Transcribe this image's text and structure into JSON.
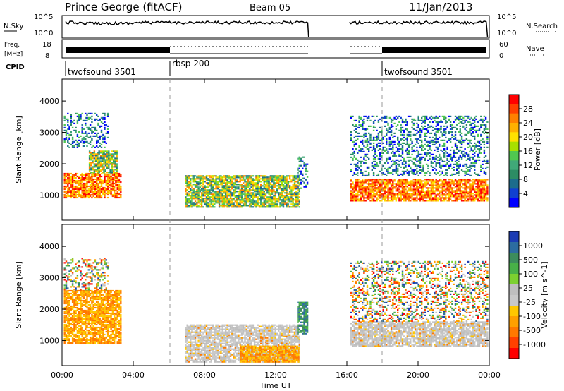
{
  "header": {
    "station": "Prince George (fitACF)",
    "beam": "Beam 05",
    "date": "11/Jan/2013"
  },
  "panels": {
    "nsky": {
      "label": "N.Sky",
      "ticks": [
        "10^5",
        "10^0"
      ],
      "right_label": "N.Search",
      "right_ticks": [
        "10^5",
        "10^0"
      ]
    },
    "freq": {
      "label_line1": "Freq.",
      "label_line2": "[MHz]",
      "ticks": [
        "18",
        "8"
      ],
      "right_label": "Nave",
      "right_ticks": [
        "60",
        "0"
      ]
    },
    "cpid": {
      "label": "CPID"
    }
  },
  "cpid_segments": [
    {
      "label": "twofsound 3501",
      "start_hour": 0
    },
    {
      "label": "rbsp 200",
      "start_hour": 6
    },
    {
      "label": "twofsound 3501",
      "start_hour": 18
    }
  ],
  "chart_data": [
    {
      "type": "heatmap",
      "name": "power",
      "ylabel": "Slant Range [km]",
      "xlabel": "Time UT",
      "x_ticks": [
        "00:00",
        "04:00",
        "08:00",
        "12:00",
        "16:00",
        "20:00",
        "00:00"
      ],
      "y_ticks": [
        1000,
        2000,
        3000,
        4000
      ],
      "xlim_hours": [
        0,
        24
      ],
      "ylim_km": [
        200,
        4700
      ],
      "colorbar": {
        "label": "Power [dB]",
        "ticks": [
          "28",
          "24",
          "20",
          "16",
          "12",
          "8",
          "4"
        ],
        "colors": [
          "#ff0000",
          "#ff4000",
          "#ff8000",
          "#ffb000",
          "#ffe000",
          "#a8e000",
          "#50c850",
          "#40a878",
          "#2c8c64",
          "#1c6c8c",
          "#1040d0",
          "#0000ff"
        ]
      },
      "regions": [
        {
          "h0": 0.1,
          "h1": 3.3,
          "r0": 900,
          "r1": 1700,
          "level": "high"
        },
        {
          "h0": 1.5,
          "h1": 3.1,
          "r0": 1700,
          "r1": 2400,
          "level": "medium"
        },
        {
          "h0": 0.1,
          "h1": 2.6,
          "r0": 2500,
          "r1": 3600,
          "level": "low"
        },
        {
          "h0": 6.9,
          "h1": 13.3,
          "r0": 600,
          "r1": 1600,
          "level": "medium"
        },
        {
          "h0": 13.2,
          "h1": 13.8,
          "r0": 1200,
          "r1": 2200,
          "level": "low"
        },
        {
          "h0": 16.2,
          "h1": 23.9,
          "r0": 800,
          "r1": 1500,
          "level": "high"
        },
        {
          "h0": 16.2,
          "h1": 23.9,
          "r0": 1600,
          "r1": 3500,
          "level": "low"
        }
      ]
    },
    {
      "type": "heatmap",
      "name": "velocity",
      "ylabel": "Slant Range [km]",
      "xlabel": "Time UT",
      "x_ticks": [
        "00:00",
        "04:00",
        "08:00",
        "12:00",
        "16:00",
        "20:00",
        "00:00"
      ],
      "y_ticks": [
        1000,
        2000,
        3000,
        4000
      ],
      "xlim_hours": [
        0,
        24
      ],
      "ylim_km": [
        200,
        4700
      ],
      "colorbar": {
        "label": "Velocity [m s^-1]",
        "ticks": [
          "1000",
          "500",
          "100",
          "25",
          "-25",
          "-100",
          "-500",
          "-1000"
        ],
        "colors": [
          "#1c3cb4",
          "#2c6ca0",
          "#3c8c5c",
          "#48b048",
          "#7cd030",
          "#bebebe",
          "#c8c8c8",
          "#ffc800",
          "#ffa000",
          "#ff7800",
          "#ff4000",
          "#ff0000"
        ]
      },
      "regions": [
        {
          "h0": 0.1,
          "h1": 3.3,
          "r0": 900,
          "r1": 2600,
          "level": "neg"
        },
        {
          "h0": 0.1,
          "h1": 2.6,
          "r0": 2600,
          "r1": 3600,
          "level": "mixed"
        },
        {
          "h0": 6.9,
          "h1": 13.3,
          "r0": 300,
          "r1": 1500,
          "level": "gray"
        },
        {
          "h0": 10.0,
          "h1": 13.3,
          "r0": 300,
          "r1": 800,
          "level": "neg"
        },
        {
          "h0": 13.2,
          "h1": 13.8,
          "r0": 1200,
          "r1": 2200,
          "level": "pos"
        },
        {
          "h0": 16.2,
          "h1": 23.9,
          "r0": 800,
          "r1": 1600,
          "level": "gray"
        },
        {
          "h0": 16.2,
          "h1": 23.9,
          "r0": 1600,
          "r1": 3500,
          "level": "mixed"
        }
      ]
    }
  ],
  "data_gap": {
    "start_hour": 13.9,
    "end_hour": 16.1
  }
}
